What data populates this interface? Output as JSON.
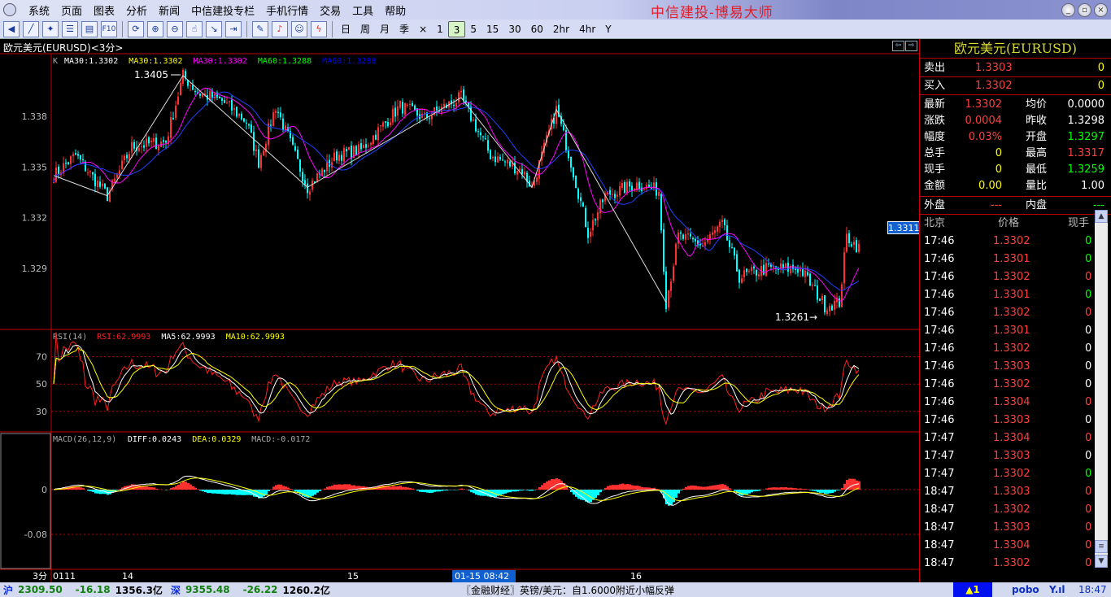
{
  "app": {
    "title": "中信建投-博易大师"
  },
  "menu": [
    "系统",
    "页面",
    "图表",
    "分析",
    "新闻",
    "中信建投专栏",
    "手机行情",
    "交易",
    "工具",
    "帮助"
  ],
  "toolbar": {
    "icons": [
      "back-icon",
      "line-chart-icon",
      "tech-chart-icon",
      "list-icon",
      "quote-icon",
      "f10-icon",
      "refresh-icon",
      "zoom-in-icon",
      "zoom-out-icon",
      "cursor-icon",
      "export-icon",
      "window-icon",
      "draw-icon",
      "alarm-icon",
      "users-icon",
      "flash-icon"
    ],
    "f10_label": "F10",
    "periods": [
      "日",
      "周",
      "月",
      "季",
      "×",
      "1",
      "3",
      "5",
      "15",
      "30",
      "60",
      "2hr",
      "4hr",
      "Y"
    ],
    "active_period": "3"
  },
  "chart": {
    "title": "欧元美元(EURUSD)<3分>",
    "legend_k": "K",
    "ma": [
      {
        "text": "MA30:1.3302",
        "color": "#ffffff"
      },
      {
        "text": "MA30:1.3302",
        "color": "#ffff00"
      },
      {
        "text": "MA30:1.3302",
        "color": "#ff00ff"
      },
      {
        "text": "MA60:1.3288",
        "color": "#00ff00"
      },
      {
        "text": "MA60:1.3288",
        "color": "#0000ff"
      }
    ],
    "high_label": "1.3405",
    "low_label": "1.3261→",
    "current_price": "1.3311",
    "price_ticks": [
      "1.338",
      "1.335",
      "1.332",
      "1.329"
    ],
    "rsi_legend": [
      {
        "text": "RSI(14)",
        "color": "#aaaaaa"
      },
      {
        "text": "RSI:62.9993",
        "color": "#ff2020"
      },
      {
        "text": "MA5:62.9993",
        "color": "#ffffff"
      },
      {
        "text": "MA10:62.9993",
        "color": "#ffff00"
      }
    ],
    "rsi_ticks": [
      "70",
      "50",
      "30"
    ],
    "macd_legend": [
      {
        "text": "MACD(26,12,9)",
        "color": "#aaaaaa"
      },
      {
        "text": "DIFF:0.0243",
        "color": "#ffffff"
      },
      {
        "text": "DEA:0.0329",
        "color": "#ffff00"
      },
      {
        "text": "MACD:-0.0172",
        "color": "#aaaaaa"
      }
    ],
    "macd_ticks": [
      "0",
      "-0.08"
    ],
    "time_axis": {
      "period": "3分",
      "labels": [
        "0111",
        "14",
        "15",
        "16"
      ],
      "cursor": "01-15 08:42"
    },
    "colors": {
      "up": "#ff3030",
      "down": "#00ffff",
      "grid": "#c00000"
    }
  },
  "chart_data": {
    "type": "candlestick",
    "symbol": "EURUSD",
    "interval": "3分",
    "ylim": [
      1.3254,
      1.3417
    ],
    "close_path": [
      [
        0,
        1.3345
      ],
      [
        9,
        1.3357
      ],
      [
        22,
        1.3333
      ],
      [
        32,
        1.3362
      ],
      [
        46,
        1.3365
      ],
      [
        53,
        1.3404
      ],
      [
        59,
        1.3394
      ],
      [
        69,
        1.3389
      ],
      [
        79,
        1.3377
      ],
      [
        84,
        1.3353
      ],
      [
        91,
        1.3386
      ],
      [
        104,
        1.3338
      ],
      [
        116,
        1.3357
      ],
      [
        126,
        1.336
      ],
      [
        142,
        1.3386
      ],
      [
        152,
        1.3379
      ],
      [
        167,
        1.3391
      ],
      [
        179,
        1.3357
      ],
      [
        192,
        1.3348
      ],
      [
        196,
        1.3338
      ],
      [
        206,
        1.3384
      ],
      [
        212,
        1.3353
      ],
      [
        219,
        1.3311
      ],
      [
        226,
        1.3333
      ],
      [
        239,
        1.334
      ],
      [
        248,
        1.3336
      ],
      [
        251,
        1.327
      ],
      [
        256,
        1.3309
      ],
      [
        266,
        1.3304
      ],
      [
        274,
        1.3316
      ],
      [
        281,
        1.3285
      ],
      [
        292,
        1.329
      ],
      [
        306,
        1.329
      ],
      [
        316,
        1.3268
      ],
      [
        322,
        1.327
      ],
      [
        325,
        1.3309
      ],
      [
        330,
        1.3302
      ]
    ],
    "high": 1.3405,
    "low": 1.3261
  },
  "quote": {
    "title": "欧元美元(EURUSD)",
    "sell": {
      "label": "卖出",
      "price": "1.3303",
      "vol": "0"
    },
    "buy": {
      "label": "买入",
      "price": "1.3302",
      "vol": "0"
    },
    "rows": [
      [
        {
          "l": "最新",
          "v": "1.3302",
          "c": "red"
        },
        {
          "l": "均价",
          "v": "0.0000",
          "c": "wht"
        }
      ],
      [
        {
          "l": "涨跌",
          "v": "0.0004",
          "c": "red"
        },
        {
          "l": "昨收",
          "v": "1.3298",
          "c": "wht"
        }
      ],
      [
        {
          "l": "幅度",
          "v": "0.03%",
          "c": "red"
        },
        {
          "l": "开盘",
          "v": "1.3297",
          "c": "grn"
        }
      ],
      [
        {
          "l": "总手",
          "v": "0",
          "c": "yel"
        },
        {
          "l": "最高",
          "v": "1.3317",
          "c": "red"
        }
      ],
      [
        {
          "l": "现手",
          "v": "0",
          "c": "yel"
        },
        {
          "l": "最低",
          "v": "1.3259",
          "c": "grn"
        }
      ],
      [
        {
          "l": "金额",
          "v": "0.00",
          "c": "yel"
        },
        {
          "l": "量比",
          "v": "1.00",
          "c": "wht"
        }
      ]
    ],
    "outer": {
      "label": "外盘",
      "value": "---"
    },
    "inner": {
      "label": "内盘",
      "value": "---"
    },
    "tick_header": [
      "北京",
      "价格",
      "现手"
    ],
    "ticks": [
      [
        "17:46",
        "1.3302",
        "0",
        "grn"
      ],
      [
        "17:46",
        "1.3301",
        "0",
        "grn"
      ],
      [
        "17:46",
        "1.3302",
        "0",
        "red"
      ],
      [
        "17:46",
        "1.3301",
        "0",
        "grn"
      ],
      [
        "17:46",
        "1.3302",
        "0",
        "red"
      ],
      [
        "17:46",
        "1.3301",
        "0",
        "wht"
      ],
      [
        "17:46",
        "1.3302",
        "0",
        "wht"
      ],
      [
        "17:46",
        "1.3303",
        "0",
        "wht"
      ],
      [
        "17:46",
        "1.3302",
        "0",
        "wht"
      ],
      [
        "17:46",
        "1.3304",
        "0",
        "red"
      ],
      [
        "17:46",
        "1.3303",
        "0",
        "wht"
      ],
      [
        "17:47",
        "1.3304",
        "0",
        "red"
      ],
      [
        "17:47",
        "1.3303",
        "0",
        "wht"
      ],
      [
        "17:47",
        "1.3302",
        "0",
        "grn"
      ],
      [
        "18:47",
        "1.3303",
        "0",
        "red"
      ],
      [
        "18:47",
        "1.3302",
        "0",
        "red"
      ],
      [
        "18:47",
        "1.3303",
        "0",
        "red"
      ],
      [
        "18:47",
        "1.3304",
        "0",
        "red"
      ],
      [
        "18:47",
        "1.3302",
        "0",
        "red"
      ]
    ]
  },
  "status": {
    "sh_label": "沪",
    "sh_index": "2309.50",
    "sh_change": "-16.18",
    "sh_amount": "1356.3亿",
    "sz_label": "深",
    "sz_index": "9355.48",
    "sz_change": "-26.22",
    "sz_amount": "1260.2亿",
    "news": "〖金融财经〗英镑/美元：自1.6000附近小幅反弹",
    "alert": "▲1",
    "brand": "pobo",
    "time": "18:47"
  }
}
